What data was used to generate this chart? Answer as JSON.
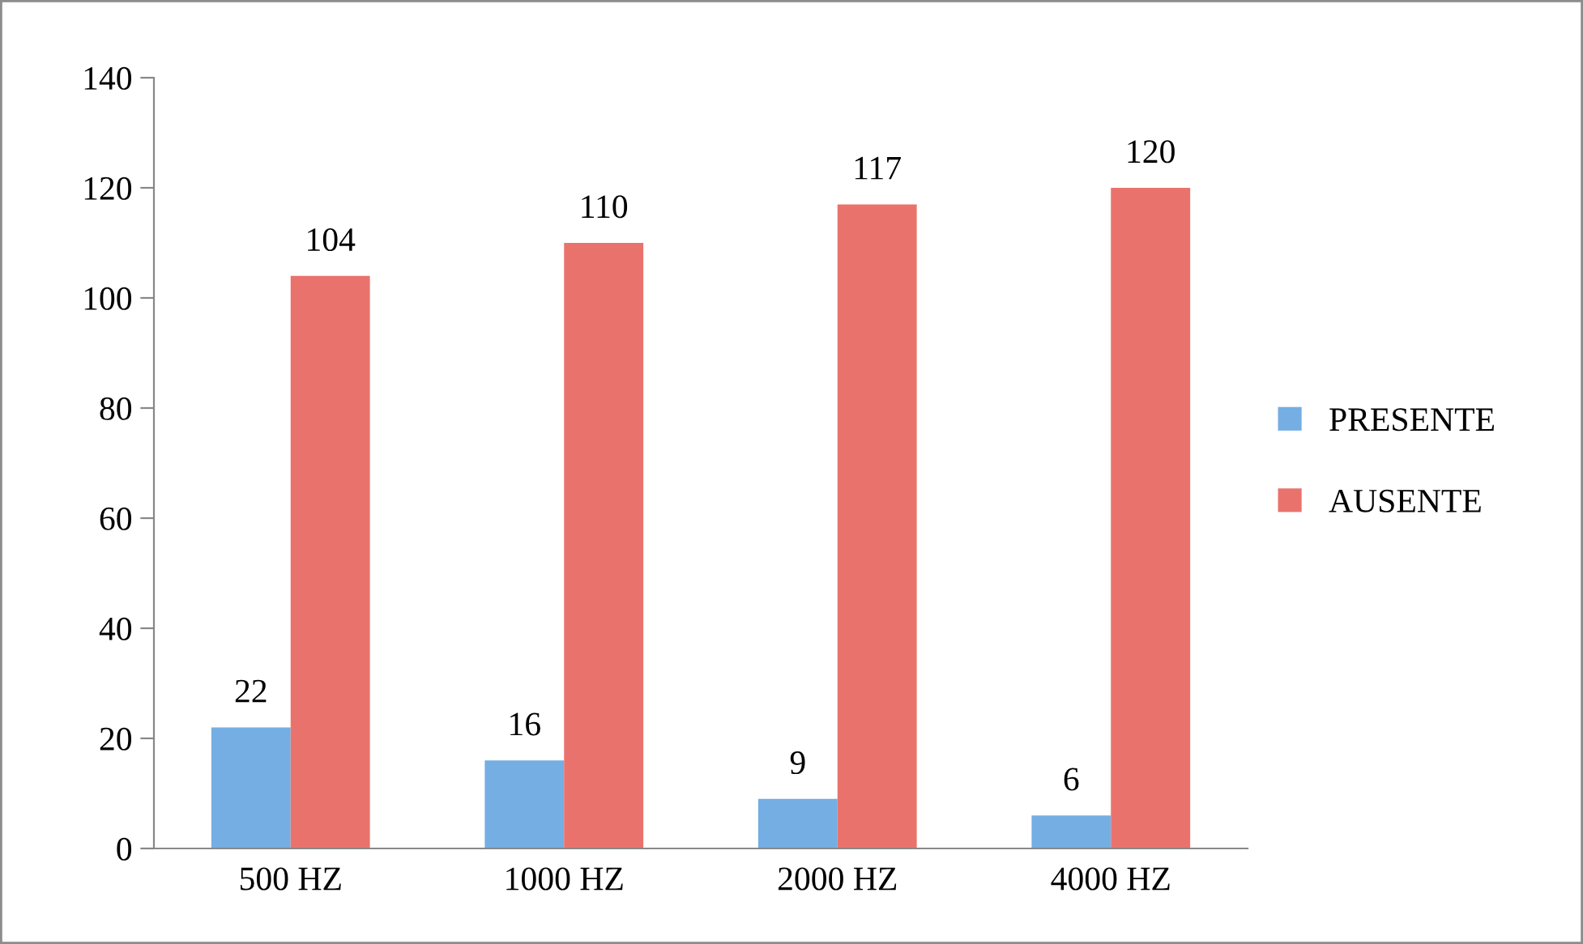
{
  "chart_data": {
    "type": "bar",
    "categories": [
      "500 HZ",
      "1000 HZ",
      "2000 HZ",
      "4000 HZ"
    ],
    "series": [
      {
        "name": "PRESENTE",
        "color": "#74aee3",
        "values": [
          22,
          16,
          9,
          6
        ]
      },
      {
        "name": "AUSENTE",
        "color": "#e9736c",
        "values": [
          104,
          110,
          117,
          120
        ]
      }
    ],
    "ylim": [
      0,
      140
    ],
    "yticks": [
      0,
      20,
      40,
      60,
      80,
      100,
      120,
      140
    ],
    "grid": false,
    "legend": "right",
    "data_labels": true
  }
}
